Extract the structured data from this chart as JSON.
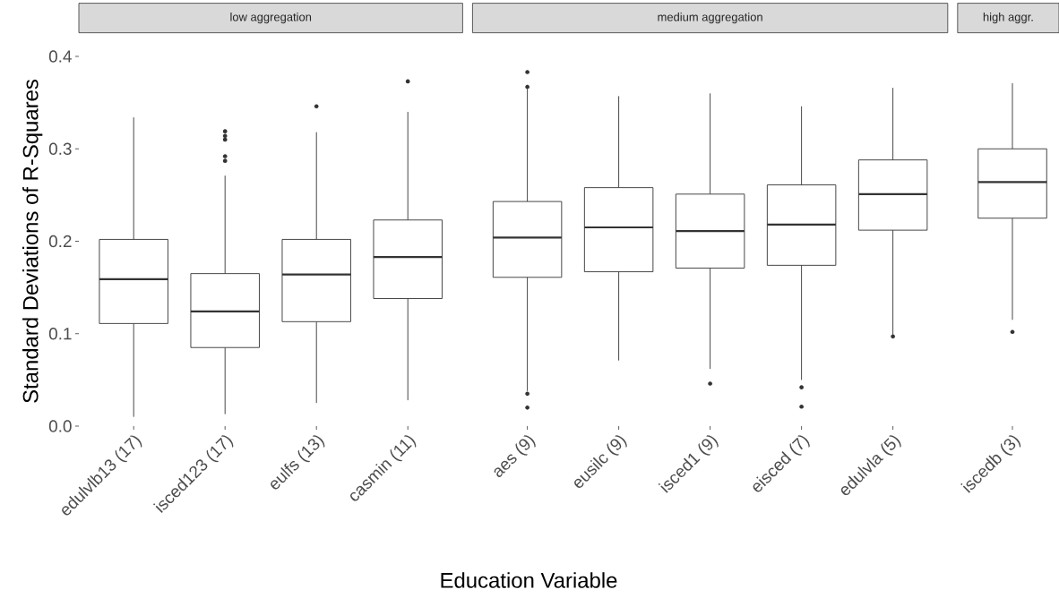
{
  "chart_data": [
    {
      "type": "box",
      "title": "low aggregation",
      "ylabel": "Standard Deviations of R-Squares",
      "color": "#333333",
      "categories": [
        "edulvlb13 (17)",
        "isced123 (17)",
        "eulfs (13)",
        "casmin (11)"
      ],
      "boxes": [
        {
          "low": 0.01,
          "q1": 0.111,
          "median": 0.159,
          "q3": 0.202,
          "high": 0.334
        },
        {
          "low": 0.013,
          "q1": 0.085,
          "median": 0.124,
          "q3": 0.165,
          "high": 0.271,
          "outliers": [
            0.319,
            0.314,
            0.31,
            0.292,
            0.287
          ]
        },
        {
          "low": 0.025,
          "q1": 0.113,
          "median": 0.164,
          "q3": 0.202,
          "high": 0.318,
          "outliers": [
            0.346
          ]
        },
        {
          "low": 0.028,
          "q1": 0.138,
          "median": 0.183,
          "q3": 0.223,
          "high": 0.34,
          "outliers": [
            0.373
          ]
        }
      ],
      "ylim": [
        0,
        0.4
      ],
      "yticks": [
        {
          "value": 0,
          "label": "0.0"
        },
        0.1,
        0.2,
        0.3,
        0.4
      ]
    },
    {
      "type": "box",
      "title": "medium aggregation",
      "xlabel": "Education Variable",
      "color": "#333333",
      "categories": [
        "aes (9)",
        "eusilc (9)",
        "isced1 (9)",
        "eisced (7)",
        "edulvla (5)"
      ],
      "boxes": [
        {
          "low": 0.038,
          "q1": 0.161,
          "median": 0.204,
          "q3": 0.243,
          "high": 0.365,
          "outliers": [
            0.383,
            0.367,
            0.035,
            0.02
          ]
        },
        {
          "low": 0.071,
          "q1": 0.167,
          "median": 0.215,
          "q3": 0.258,
          "high": 0.357
        },
        {
          "low": 0.062,
          "q1": 0.171,
          "median": 0.211,
          "q3": 0.251,
          "high": 0.36,
          "outliers": [
            0.046
          ]
        },
        {
          "low": 0.05,
          "q1": 0.174,
          "median": 0.218,
          "q3": 0.261,
          "high": 0.346,
          "outliers": [
            0.042,
            0.021
          ]
        },
        {
          "low": 0.099,
          "q1": 0.212,
          "median": 0.251,
          "q3": 0.288,
          "high": 0.366,
          "outliers": [
            0.097
          ]
        }
      ],
      "ylim": [
        0,
        0.4
      ],
      "tick_labels": "x"
    },
    {
      "type": "box",
      "title": "high aggr.",
      "color": "#333333",
      "categories": [
        "iscedb (3)"
      ],
      "boxes": [
        {
          "low": 0.115,
          "q1": 0.225,
          "median": 0.264,
          "q3": 0.3,
          "high": 0.371,
          "outliers": [
            0.102
          ]
        }
      ],
      "ylim": [
        0,
        0.4
      ],
      "tick_labels": "x"
    }
  ]
}
